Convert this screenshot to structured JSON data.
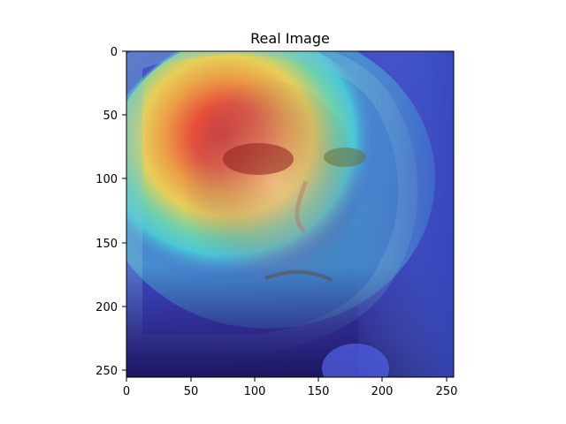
{
  "figure": {
    "title": "Real Image",
    "image_description_free": true,
    "x_axis": {
      "range": [
        0,
        255
      ],
      "ticks": [
        0,
        50,
        100,
        150,
        200,
        250
      ],
      "tick_labels": [
        "0",
        "50",
        "100",
        "150",
        "200",
        "250"
      ]
    },
    "y_axis": {
      "range": [
        0,
        255
      ],
      "ticks": [
        0,
        50,
        100,
        150,
        200,
        250
      ],
      "tick_labels": [
        "0",
        "50",
        "100",
        "150",
        "200",
        "250"
      ],
      "inverted": true
    },
    "colors": {
      "background": "#ffffff",
      "axis": "#000000",
      "overlay_blue": "#3b43c9",
      "overlay_cyan": "#4fd0d6",
      "overlay_yellow": "#e7c84a",
      "overlay_red": "#e3342f"
    },
    "icon_names": [
      "heatmap-image"
    ]
  }
}
